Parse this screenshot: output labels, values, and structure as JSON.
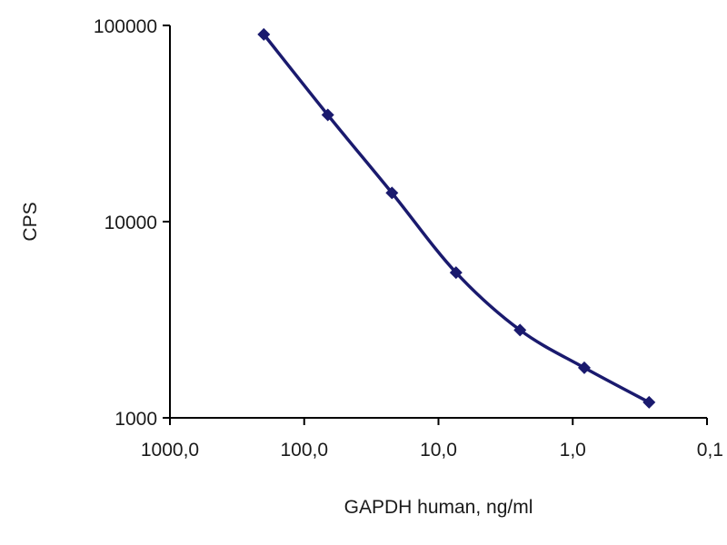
{
  "chart_data": {
    "type": "line",
    "title": "",
    "xlabel": "GAPDH human, ng/ml",
    "ylabel": "CPS",
    "x_scale": "log",
    "x_reversed": true,
    "y_scale": "log",
    "xlim": [
      1000,
      0.1
    ],
    "ylim": [
      1000,
      100000
    ],
    "x_ticks": [
      {
        "value": 1000,
        "label": "1000,0"
      },
      {
        "value": 100,
        "label": "100,0"
      },
      {
        "value": 10,
        "label": "10,0"
      },
      {
        "value": 1,
        "label": "1,0"
      },
      {
        "value": 0.1,
        "label": "0,1"
      }
    ],
    "y_ticks": [
      {
        "value": 100000,
        "label": "100000"
      },
      {
        "value": 10000,
        "label": "10000"
      },
      {
        "value": 1000,
        "label": "1000"
      }
    ],
    "grid": false,
    "legend": "none",
    "series": [
      {
        "color": "#1a1a6e",
        "marker": "diamond",
        "x": [
          200,
          66.7,
          22.2,
          7.4,
          2.47,
          0.82,
          0.27
        ],
        "y": [
          90000,
          35000,
          14000,
          5500,
          2800,
          1800,
          1200
        ]
      }
    ]
  }
}
